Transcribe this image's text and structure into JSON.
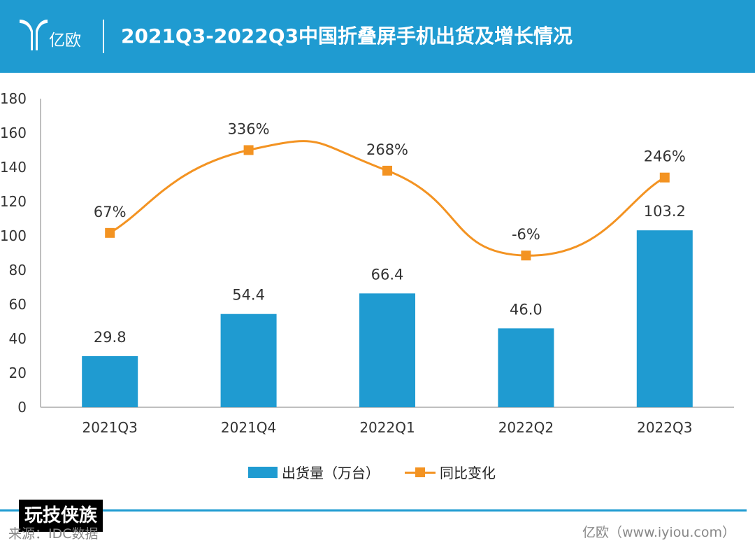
{
  "header": {
    "logo_text": "亿欧",
    "title": "2021Q3-2022Q3中国折叠屏手机出货及增长情况",
    "background_color": "#1f9bd1"
  },
  "chart_data": {
    "type": "bar",
    "categories": [
      "2021Q3",
      "2021Q4",
      "2022Q1",
      "2022Q2",
      "2022Q3"
    ],
    "ylim": [
      0,
      180
    ],
    "yticks": [
      0,
      20,
      40,
      60,
      80,
      100,
      120,
      140,
      160,
      180
    ],
    "xlabel": "",
    "ylabel": "",
    "grid": false,
    "legend_position": "bottom",
    "series": [
      {
        "name": "出货量（万台）",
        "type": "bar",
        "values": [
          29.8,
          54.4,
          66.4,
          46.0,
          103.2
        ],
        "labels": [
          "29.8",
          "54.4",
          "66.4",
          "46.0",
          "103.2"
        ],
        "color": "#1f9bd1"
      },
      {
        "name": "同比变化",
        "type": "line",
        "smooth": true,
        "marker": "square",
        "plotted_on_left_axis": [
          101.7,
          150,
          138,
          88.5,
          134
        ],
        "labels": [
          "67%",
          "336%",
          "268%",
          "-6%",
          "246%"
        ],
        "color": "#f39322"
      }
    ]
  },
  "footer": {
    "watermark": "玩技侠族",
    "source": "来源：IDC数据",
    "credit": "亿欧（www.iyiou.com）",
    "line_color": "#1f9bd1"
  }
}
